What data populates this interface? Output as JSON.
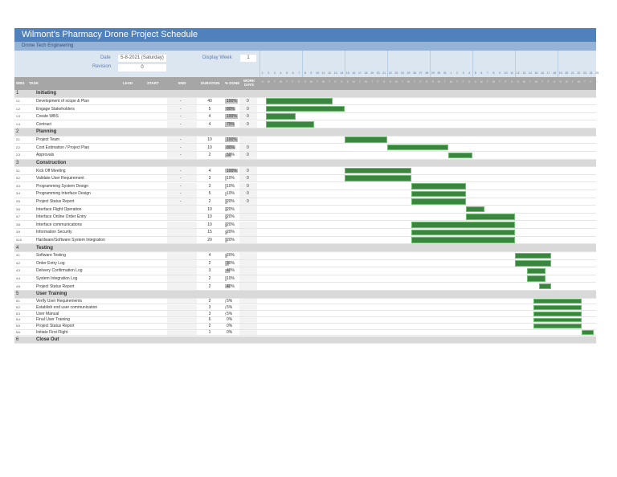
{
  "header": {
    "title": "Wilmont's Pharmacy Drone Project Schedule",
    "subtitle": "Drone Tech Engineering",
    "date_label": "Date",
    "date_value": "5-8-2021 (Saturday)",
    "revision_label": "Revision",
    "revision_value": "0",
    "display_week_label": "Display Week",
    "display_week_value": "1"
  },
  "columns": {
    "wbs": "WBS",
    "task": "TASK",
    "lead": "LEAD",
    "start": "START",
    "end": "END",
    "duration": "DURATION",
    "pct": "% DONE",
    "work_days": "WORK DAYS"
  },
  "calendar": {
    "day_numbers": [
      "1",
      "2",
      "3",
      "4",
      "5",
      "6",
      "7",
      "8",
      "9",
      "10",
      "11",
      "12",
      "13",
      "14",
      "15",
      "16",
      "17",
      "18",
      "19",
      "20",
      "21",
      "22",
      "23",
      "24",
      "25",
      "26",
      "27",
      "28",
      "29",
      "30",
      "31",
      "1",
      "2",
      "3",
      "4",
      "5",
      "6",
      "7",
      "8",
      "9",
      "10",
      "11",
      "12",
      "13",
      "14",
      "15",
      "16",
      "17",
      "18",
      "19",
      "20",
      "21",
      "22",
      "23",
      "24",
      "25"
    ],
    "day_letters": [
      "S",
      "M",
      "T",
      "W",
      "T",
      "F",
      "S"
    ]
  },
  "colors": {
    "title": "#4f81bd",
    "bar": "#3c8540"
  },
  "rows": [
    {
      "type": "cat",
      "wbs": "1",
      "task": "Initiating"
    },
    {
      "wbs": "1.1",
      "task": "Development of scope & Plan",
      "end": "-",
      "duration": "40",
      "pct": "100%",
      "pct_value": 100,
      "work_days": "0",
      "bar_start": 1,
      "bar_len": 11
    },
    {
      "wbs": "1.2",
      "task": "Engage Stakeholders",
      "end": "-",
      "duration": "5",
      "pct": "80%",
      "pct_value": 80,
      "work_days": "0",
      "bar_start": 1,
      "bar_len": 13
    },
    {
      "wbs": "1.3",
      "task": "Create WBS",
      "end": "-",
      "duration": "4",
      "pct": "100%",
      "pct_value": 100,
      "work_days": "0",
      "bar_start": 1,
      "bar_len": 5
    },
    {
      "wbs": "1.4",
      "task": "Contract",
      "end": "-",
      "duration": "4",
      "pct": "75%",
      "pct_value": 75,
      "work_days": "0",
      "bar_start": 1,
      "bar_len": 8
    },
    {
      "type": "cat",
      "wbs": "2",
      "task": "Planning"
    },
    {
      "wbs": "2.1",
      "task": "Project Team",
      "end": "-",
      "duration": "10",
      "pct": "100%",
      "pct_value": 100,
      "work_days": "",
      "bar_start": 14,
      "bar_len": 7
    },
    {
      "wbs": "2.2",
      "task": "Cost Estimation / Project Plan",
      "end": "-",
      "duration": "10",
      "pct": "80%",
      "pct_value": 80,
      "work_days": "0",
      "bar_start": 21,
      "bar_len": 10
    },
    {
      "wbs": "2.3",
      "task": "Approvals",
      "end": "-",
      "duration": "2",
      "pct": "50%",
      "pct_value": 50,
      "work_days": "0",
      "bar_start": 31,
      "bar_len": 4
    },
    {
      "type": "cat",
      "wbs": "3",
      "task": "Construction"
    },
    {
      "wbs": "3.1",
      "task": "Kick Off Meeting",
      "end": "-",
      "duration": "4",
      "pct": "100%",
      "pct_value": 100,
      "work_days": "0",
      "bar_start": 14,
      "bar_len": 11
    },
    {
      "wbs": "3.2",
      "task": "Validate User Requirement",
      "end": "-",
      "duration": "3",
      "pct": "10%",
      "pct_value": 10,
      "work_days": "0",
      "bar_start": 14,
      "bar_len": 11
    },
    {
      "wbs": "3.3",
      "task": "Programming System Design",
      "end": "-",
      "duration": "3",
      "pct": "10%",
      "pct_value": 10,
      "work_days": "0",
      "bar_start": 25,
      "bar_len": 9
    },
    {
      "wbs": "3.4",
      "task": "Programming Interface Design",
      "end": "-",
      "duration": "5",
      "pct": "10%",
      "pct_value": 10,
      "work_days": "0",
      "bar_start": 25,
      "bar_len": 9
    },
    {
      "wbs": "3.5",
      "task": "Project Status Report",
      "end": "-",
      "duration": "2",
      "pct": "20%",
      "pct_value": 20,
      "work_days": "0",
      "bar_start": 25,
      "bar_len": 9
    },
    {
      "wbs": "3.6",
      "task": "Interface Flight Operation",
      "end": "",
      "duration": "10",
      "pct": "20%",
      "pct_value": 20,
      "work_days": "",
      "bar_start": 34,
      "bar_len": 3
    },
    {
      "wbs": "3.7",
      "task": "Interface Online Order Entry",
      "end": "",
      "duration": "10",
      "pct": "20%",
      "pct_value": 20,
      "work_days": "",
      "bar_start": 34,
      "bar_len": 8
    },
    {
      "wbs": "3.8",
      "task": "Interface communications",
      "end": "",
      "duration": "10",
      "pct": "20%",
      "pct_value": 20,
      "work_days": "",
      "bar_start": 25,
      "bar_len": 17
    },
    {
      "wbs": "3.9",
      "task": "Information Security",
      "end": "",
      "duration": "15",
      "pct": "20%",
      "pct_value": 20,
      "work_days": "",
      "bar_start": 25,
      "bar_len": 17
    },
    {
      "wbs": "3.10",
      "task": "Hardware/Software System Integration",
      "end": "",
      "duration": "20",
      "pct": "20%",
      "pct_value": 20,
      "work_days": "",
      "bar_start": 25,
      "bar_len": 17
    },
    {
      "type": "cat",
      "wbs": "4",
      "task": "Testing"
    },
    {
      "wbs": "4.1",
      "task": "Software Testing",
      "end": "",
      "duration": "4",
      "pct": "20%",
      "pct_value": 20,
      "work_days": "",
      "bar_start": 42,
      "bar_len": 6
    },
    {
      "wbs": "4.2",
      "task": "Order Entry Log",
      "end": "",
      "duration": "2",
      "pct": "30%",
      "pct_value": 30,
      "work_days": "",
      "bar_start": 42,
      "bar_len": 6
    },
    {
      "wbs": "4.3",
      "task": "Delivery Confirmation Log",
      "end": "",
      "duration": "3",
      "pct": "40%",
      "pct_value": 40,
      "work_days": "",
      "bar_start": 44,
      "bar_len": 3
    },
    {
      "wbs": "4.4",
      "task": "System Integration Log",
      "end": "",
      "duration": "2",
      "pct": "10%",
      "pct_value": 10,
      "work_days": "",
      "bar_start": 44,
      "bar_len": 3
    },
    {
      "wbs": "4.5",
      "task": "Project Status Report",
      "end": "",
      "duration": "2",
      "pct": "40%",
      "pct_value": 40,
      "work_days": "",
      "bar_start": 46,
      "bar_len": 2
    },
    {
      "type": "cat",
      "wbs": "5",
      "task": "User Training"
    },
    {
      "wbs": "5.1",
      "task": "Verify User Requirements",
      "end": "",
      "duration": "2",
      "pct": "5%",
      "pct_value": 5,
      "work_days": "",
      "bar_start": 45,
      "bar_len": 8,
      "small": true
    },
    {
      "wbs": "5.2",
      "task": "Establish end user communication",
      "end": "",
      "duration": "3",
      "pct": "5%",
      "pct_value": 5,
      "work_days": "",
      "bar_start": 45,
      "bar_len": 8,
      "small": true
    },
    {
      "wbs": "5.3",
      "task": "User Manual",
      "end": "",
      "duration": "3",
      "pct": "5%",
      "pct_value": 5,
      "work_days": "",
      "bar_start": 45,
      "bar_len": 8,
      "small": true
    },
    {
      "wbs": "5.4",
      "task": "Final User Training",
      "end": "",
      "duration": "6",
      "pct": "0%",
      "pct_value": 0,
      "work_days": "",
      "bar_start": 45,
      "bar_len": 8,
      "small": true
    },
    {
      "wbs": "5.5",
      "task": "Project Status Report",
      "end": "",
      "duration": "2",
      "pct": "0%",
      "pct_value": 0,
      "work_days": "",
      "bar_start": 45,
      "bar_len": 8,
      "small": true
    },
    {
      "wbs": "5.6",
      "task": "Initiate First Flight",
      "end": "",
      "duration": "1",
      "pct": "0%",
      "pct_value": 0,
      "work_days": "",
      "bar_start": 53,
      "bar_len": 2,
      "small": true
    },
    {
      "type": "cat",
      "wbs": "6",
      "task": "Close Out"
    }
  ]
}
